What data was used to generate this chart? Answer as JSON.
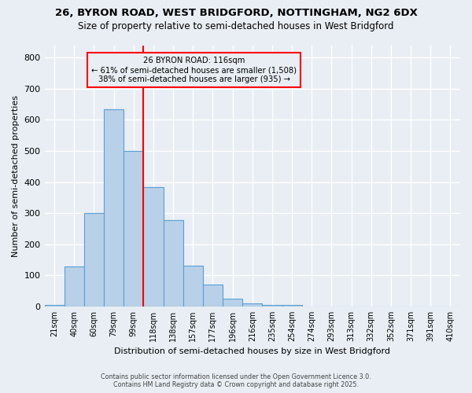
{
  "title1": "26, BYRON ROAD, WEST BRIDGFORD, NOTTINGHAM, NG2 6DX",
  "title2": "Size of property relative to semi-detached houses in West Bridgford",
  "xlabel": "Distribution of semi-detached houses by size in West Bridgford",
  "ylabel": "Number of semi-detached properties",
  "bin_labels": [
    "21sqm",
    "40sqm",
    "60sqm",
    "79sqm",
    "99sqm",
    "118sqm",
    "138sqm",
    "157sqm",
    "177sqm",
    "196sqm",
    "216sqm",
    "235sqm",
    "254sqm",
    "274sqm",
    "293sqm",
    "313sqm",
    "332sqm",
    "352sqm",
    "371sqm",
    "391sqm",
    "410sqm"
  ],
  "bin_values": [
    5,
    128,
    300,
    635,
    500,
    383,
    277,
    132,
    70,
    25,
    10,
    6,
    4,
    0,
    0,
    0,
    0,
    0,
    0,
    0,
    0
  ],
  "annotation_title": "26 BYRON ROAD: 116sqm",
  "annotation_line1": "← 61% of semi-detached houses are smaller (1,508)",
  "annotation_line2": "38% of semi-detached houses are larger (935) →",
  "bar_color": "#b8d0e8",
  "bar_edge_color": "#5a9fd4",
  "vline_color": "red",
  "vline_pos": 4.5,
  "annotation_box_color": "red",
  "background_color": "#e8eef4",
  "grid_color": "#ffffff",
  "footer1": "Contains HM Land Registry data © Crown copyright and database right 2025.",
  "footer2": "Contains public sector information licensed under the Open Government Licence 3.0.",
  "ylim": [
    0,
    840
  ],
  "yticks": [
    0,
    100,
    200,
    300,
    400,
    500,
    600,
    700,
    800
  ]
}
